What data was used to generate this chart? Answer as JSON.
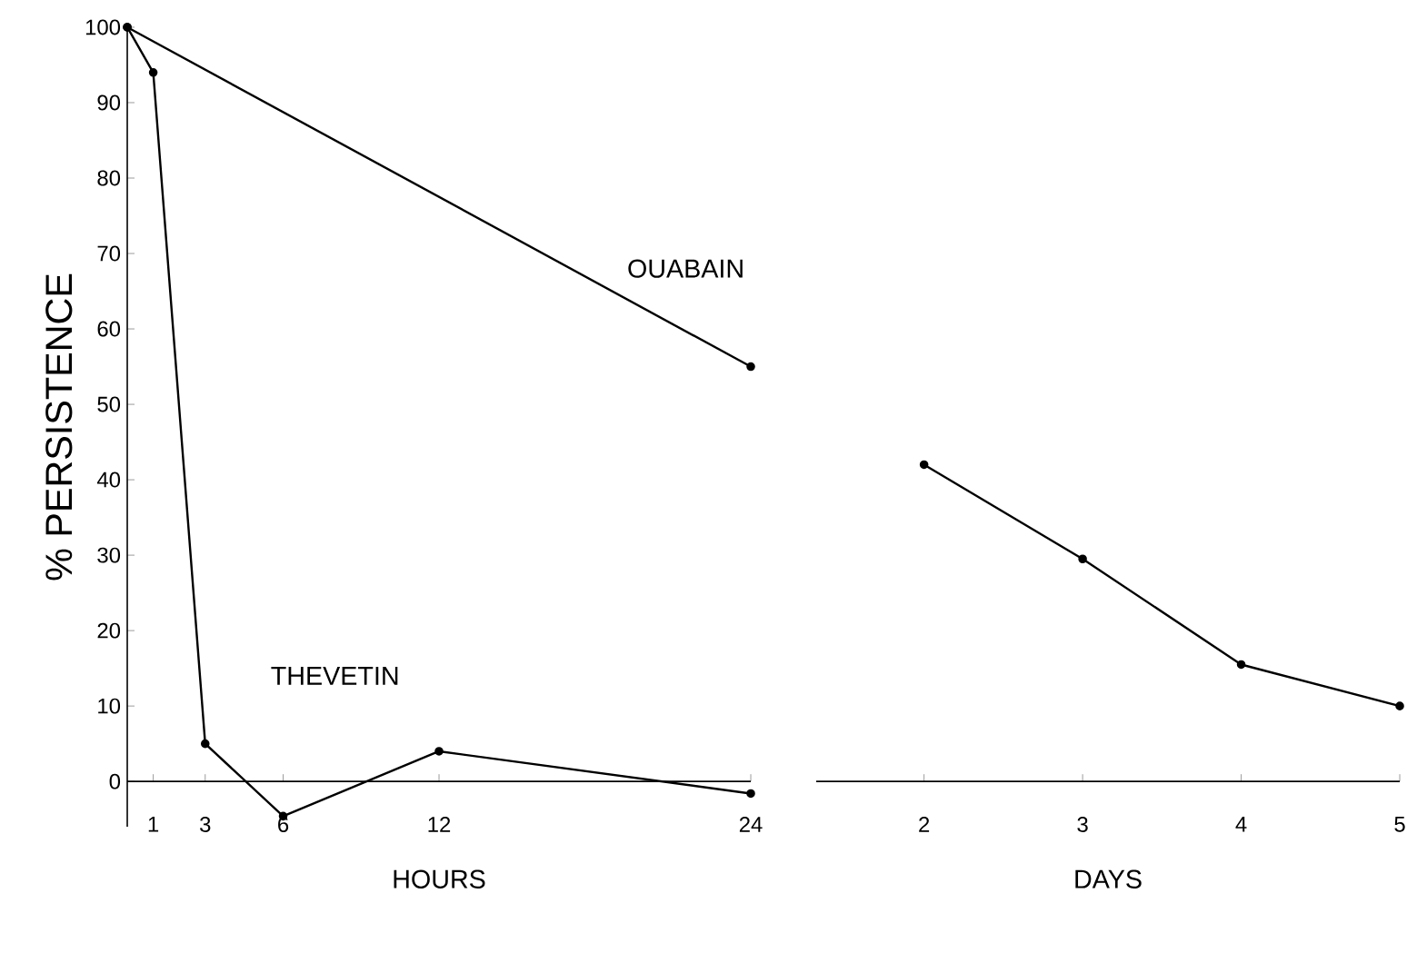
{
  "chart_data": [
    {
      "type": "line",
      "ylabel": "% PERSISTENCE",
      "xlabel": "HOURS",
      "xlim": [
        0,
        24
      ],
      "xticks": [
        1,
        3,
        6,
        12,
        24
      ],
      "ylim": [
        -6,
        100
      ],
      "yticks": [
        0,
        10,
        20,
        30,
        40,
        50,
        60,
        70,
        80,
        90,
        100
      ],
      "marker": "circle",
      "series": [
        {
          "name": "OUABAIN",
          "color": "#000000",
          "x": [
            0,
            24
          ],
          "values": [
            100,
            55
          ]
        },
        {
          "name": "THEVETIN",
          "color": "#000000",
          "x": [
            0,
            1,
            3,
            6,
            12,
            24
          ],
          "values": [
            100,
            94,
            5,
            -4.6,
            4,
            -1.6
          ]
        }
      ]
    },
    {
      "type": "line",
      "xlabel": "DAYS",
      "xlim": [
        1.32,
        5
      ],
      "xticks": [
        2,
        3,
        4,
        5
      ],
      "ylim": [
        0,
        100
      ],
      "yticks": [
        0,
        10,
        20,
        30,
        40,
        50,
        60,
        70,
        80,
        90,
        100
      ],
      "tick_labels": "x",
      "marker": "circle",
      "series": [
        {
          "color": "#000000",
          "x": [
            2,
            3,
            4,
            5
          ],
          "values": [
            42,
            29.5,
            15.5,
            10
          ]
        }
      ]
    }
  ]
}
